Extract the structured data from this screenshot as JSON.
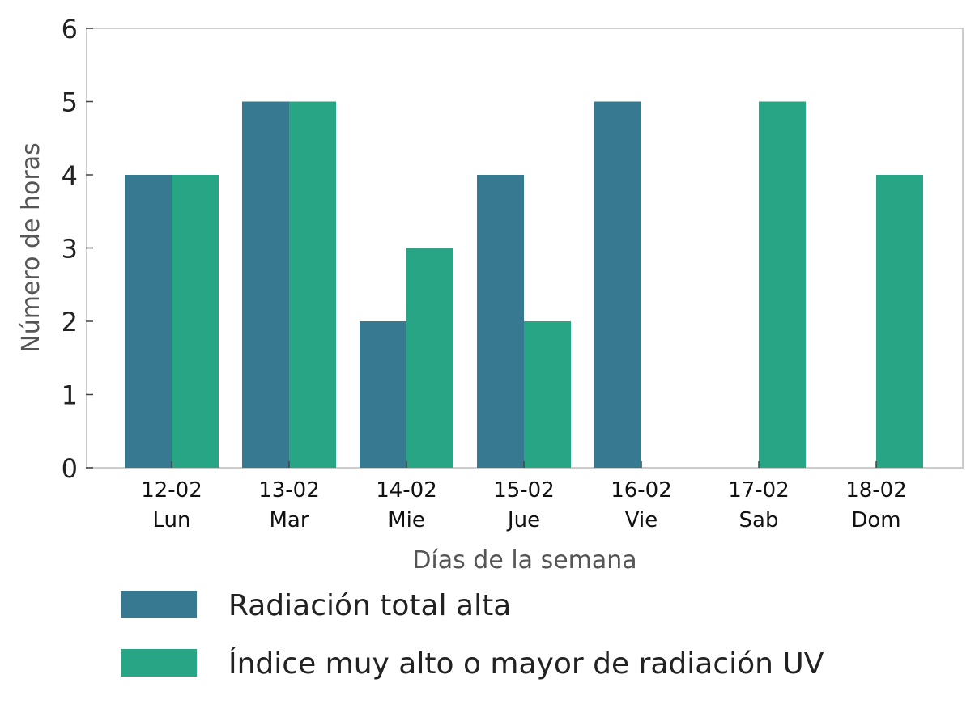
{
  "chart_data": {
    "type": "bar",
    "categories": [
      [
        "12-02",
        "Lun"
      ],
      [
        "13-02",
        "Mar"
      ],
      [
        "14-02",
        "Mie"
      ],
      [
        "15-02",
        "Jue"
      ],
      [
        "16-02",
        "Vie"
      ],
      [
        "17-02",
        "Sab"
      ],
      [
        "18-02",
        "Dom"
      ]
    ],
    "series": [
      {
        "name": "Radiación total alta",
        "color": "#367991",
        "values": [
          4,
          5,
          2,
          4,
          5,
          0,
          0
        ]
      },
      {
        "name": "Índice muy alto o mayor de radiación UV",
        "color": "#27a585",
        "values": [
          4,
          5,
          3,
          2,
          0,
          5,
          4
        ]
      }
    ],
    "xlabel": "Días de la semana",
    "ylabel": "Número de horas",
    "ylim": [
      0,
      6
    ],
    "yticks": [
      0,
      1,
      2,
      3,
      4,
      5,
      6
    ],
    "grid": false,
    "legend_position": "bottom"
  }
}
